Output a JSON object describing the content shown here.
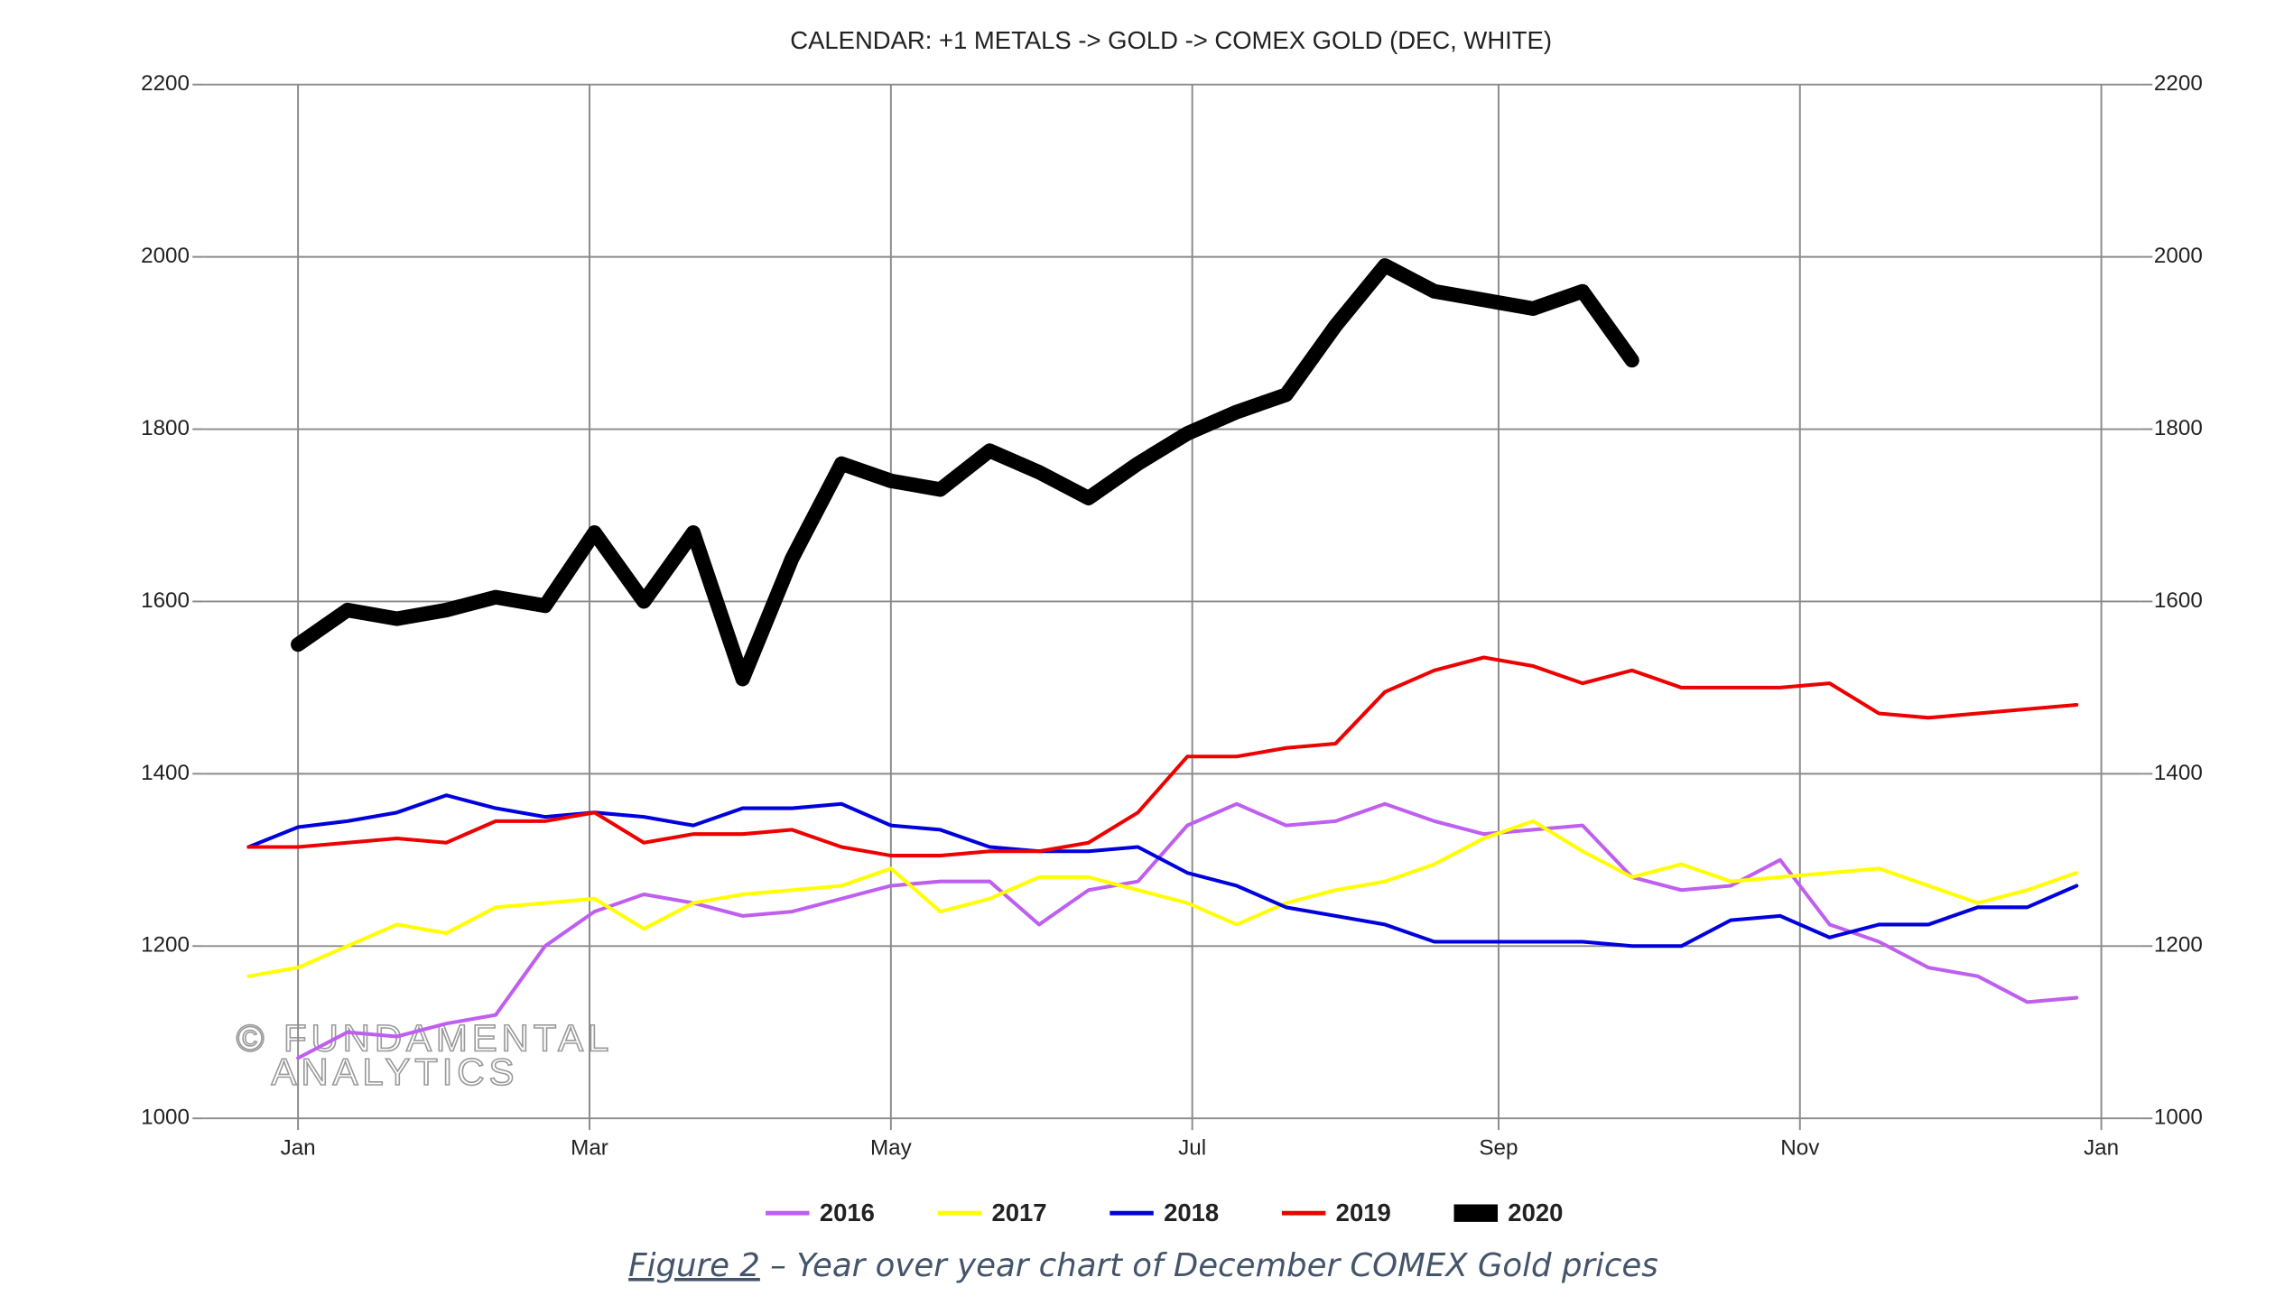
{
  "chart_data": {
    "type": "line",
    "title": "CALENDAR: +1 METALS -> GOLD -> COMEX GOLD (DEC, WHITE)",
    "watermark": [
      "© FUNDAMENTAL",
      "ANALYTICS"
    ],
    "caption": {
      "label": "Figure 2",
      "text": " – Year over year chart of December COMEX Gold prices"
    },
    "x": [
      -10,
      0,
      10,
      20,
      30,
      40,
      50,
      60,
      70,
      80,
      90,
      100,
      110,
      120,
      130,
      140,
      150,
      160,
      170,
      180,
      190,
      200,
      210,
      220,
      230,
      240,
      250,
      260,
      270,
      280,
      290,
      300,
      310,
      320,
      330,
      340,
      350,
      360
    ],
    "xlim": [
      -19,
      373
    ],
    "xticks": [
      {
        "value": 0,
        "label": "Jan"
      },
      {
        "value": 59,
        "label": "Mar"
      },
      {
        "value": 120,
        "label": "May"
      },
      {
        "value": 181,
        "label": "Jul"
      },
      {
        "value": 243,
        "label": "Sep"
      },
      {
        "value": 304,
        "label": "Nov"
      },
      {
        "value": 365,
        "label": "Jan"
      }
    ],
    "ylim": [
      1000,
      2200
    ],
    "yticks": [
      1000,
      1200,
      1400,
      1600,
      1800,
      2000,
      2200
    ],
    "y2lim": [
      1000,
      2200
    ],
    "y2ticks": [
      1000,
      1200,
      1400,
      1600,
      1800,
      2000,
      2200
    ],
    "grid": true,
    "legend": "bottom",
    "series": [
      {
        "name": "2016",
        "color": "#bf5fef",
        "line_width": 2.5,
        "values": [
          null,
          1070,
          1100,
          1095,
          1110,
          1120,
          1200,
          1240,
          1260,
          1250,
          1235,
          1240,
          1255,
          1270,
          1275,
          1275,
          1225,
          1265,
          1275,
          1340,
          1365,
          1340,
          1345,
          1365,
          1345,
          1330,
          1335,
          1340,
          1280,
          1265,
          1270,
          1300,
          1225,
          1205,
          1175,
          1165,
          1135,
          1140
        ]
      },
      {
        "name": "2017",
        "color": "#ffff00",
        "line_width": 2.5,
        "values": [
          1165,
          1175,
          1200,
          1225,
          1215,
          1245,
          1250,
          1255,
          1220,
          1250,
          1260,
          1265,
          1270,
          1290,
          1240,
          1255,
          1280,
          1280,
          1265,
          1250,
          1225,
          1250,
          1265,
          1275,
          1295,
          1325,
          1345,
          1310,
          1280,
          1295,
          1275,
          1280,
          1285,
          1290,
          1270,
          1250,
          1265,
          1285
        ]
      },
      {
        "name": "2018",
        "color": "#0000dd",
        "line_width": 2.5,
        "values": [
          1315,
          1338,
          1345,
          1355,
          1375,
          1360,
          1350,
          1355,
          1350,
          1340,
          1360,
          1360,
          1365,
          1340,
          1335,
          1315,
          1310,
          1310,
          1315,
          1285,
          1270,
          1245,
          1235,
          1225,
          1205,
          1205,
          1205,
          1205,
          1200,
          1200,
          1230,
          1235,
          1210,
          1225,
          1225,
          1245,
          1245,
          1270
        ]
      },
      {
        "name": "2019",
        "color": "#ee0000",
        "line_width": 2.5,
        "values": [
          1315,
          1315,
          1320,
          1325,
          1320,
          1345,
          1345,
          1355,
          1320,
          1330,
          1330,
          1335,
          1315,
          1305,
          1305,
          1310,
          1310,
          1320,
          1355,
          1420,
          1420,
          1430,
          1435,
          1495,
          1520,
          1535,
          1525,
          1505,
          1520,
          1500,
          1500,
          1500,
          1505,
          1470,
          1465,
          1470,
          1475,
          1480
        ]
      },
      {
        "name": "2020",
        "color": "#000000",
        "line_width": 10,
        "values": [
          null,
          1550,
          1590,
          1580,
          1590,
          1605,
          1595,
          1680,
          1600,
          1680,
          1510,
          1650,
          1760,
          1740,
          1730,
          1775,
          1750,
          1720,
          1760,
          1795,
          1820,
          1840,
          1920,
          1990,
          1960,
          1950,
          1940,
          1960,
          1880,
          null,
          null,
          null,
          null,
          null,
          null,
          null,
          null,
          null
        ]
      }
    ]
  }
}
